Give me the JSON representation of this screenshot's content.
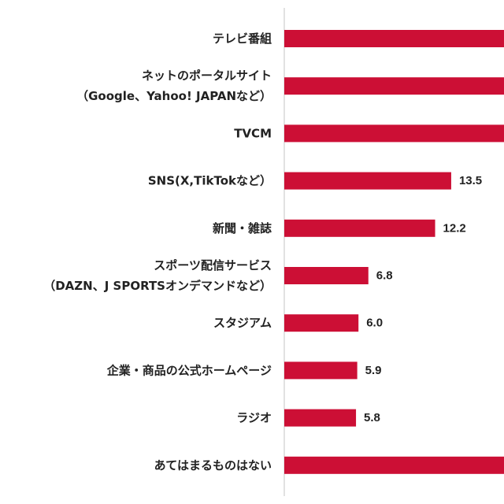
{
  "chart_data": {
    "type": "bar",
    "orientation": "horizontal",
    "bar_color": "#cc0f35",
    "axis_color": "#d9d9d9",
    "xlim": [
      0,
      26
    ],
    "categories": [
      [
        "テレビ番組"
      ],
      [
        "ネットのポータルサイト",
        "（Google、Yahoo! JAPANなど）"
      ],
      [
        "TVCM"
      ],
      [
        "SNS(X,TikTokなど）"
      ],
      [
        "新聞・雑誌"
      ],
      [
        "スポーツ配信サービス",
        "（DAZN、J SPORTSオンデマンドなど）"
      ],
      [
        "スタジアム"
      ],
      [
        "企業・商品の公式ホームページ"
      ],
      [
        "ラジオ"
      ],
      [
        "あてはまるものはない"
      ]
    ],
    "values": [
      null,
      null,
      null,
      13.5,
      12.2,
      6.8,
      6.0,
      5.9,
      5.8,
      null
    ],
    "data_labels": [
      "",
      "",
      "",
      "13.5",
      "12.2",
      "6.8",
      "6.0",
      "5.9",
      "5.8",
      ""
    ]
  }
}
